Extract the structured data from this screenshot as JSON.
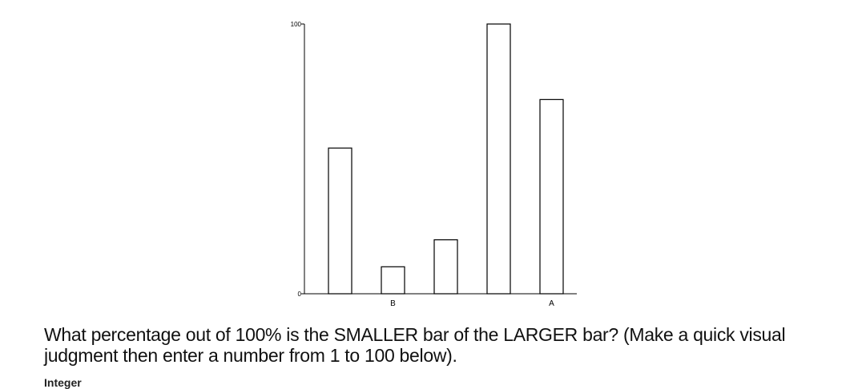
{
  "chart_data": {
    "type": "bar",
    "categories": [
      "",
      "B",
      "",
      "",
      "A"
    ],
    "values": [
      54,
      10,
      20,
      100,
      72
    ],
    "ylim": [
      0,
      100
    ],
    "yticks": [
      0,
      100
    ],
    "title": "",
    "xlabel": "",
    "ylabel": "",
    "grid": false,
    "bar_fill": "#ffffff",
    "bar_stroke": "#000000"
  },
  "question": {
    "text": "What percentage out of 100% is the SMALLER bar of the LARGER bar? (Make a quick visual judgment then enter a number from 1 to 100 below)."
  },
  "answer": {
    "type_label": "Integer"
  }
}
